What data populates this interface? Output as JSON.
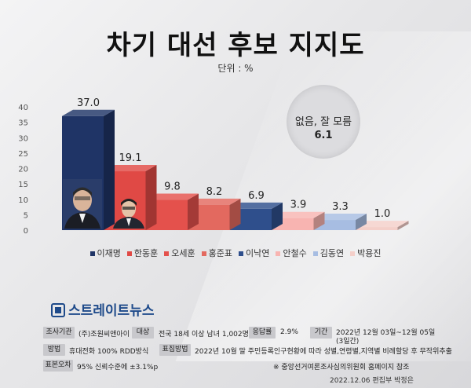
{
  "chart_data": {
    "type": "bar",
    "title": "차기 대선 후보 지지도",
    "unit_label": "단위 : %",
    "categories": [
      "이재명",
      "한동훈",
      "오세훈",
      "홍준표",
      "이낙연",
      "안철수",
      "김동연",
      "박용진"
    ],
    "values": [
      37.0,
      19.1,
      9.8,
      8.2,
      6.9,
      3.9,
      3.3,
      1.0
    ],
    "value_labels": [
      "37.0",
      "19.1",
      "9.8",
      "8.2",
      "6.9",
      "3.9",
      "3.3",
      "1.0"
    ],
    "colors": [
      "#1f3466",
      "#e04945",
      "#e4514c",
      "#e3695f",
      "#2f4f8c",
      "#f8b4b1",
      "#a7bde2",
      "#f4cfc9"
    ],
    "yticks": [
      0,
      5,
      10,
      15,
      20,
      25,
      30,
      35,
      40
    ],
    "ylim": [
      0,
      40
    ],
    "legend_position": "bottom",
    "annotation": {
      "label": "없음, 잘 모름",
      "value": "6.1"
    }
  },
  "logo": {
    "text": "스트레이트뉴스"
  },
  "info": {
    "r1": {
      "t1": "조사기관",
      "v1": "(주)조원씨앤아이",
      "t2": "대상",
      "v2": "전국 18세 이상 남녀 1,002명",
      "t3": "응답률",
      "v3": "2.9%",
      "t4": "기간",
      "v4a": "2022년 12월 03일~12월 05일",
      "v4b": "(3일간)"
    },
    "r2": {
      "t1": "방법",
      "v1": "휴대전화 100% RDD방식",
      "t2": "표집방법",
      "v2": "2022년 10월 말 주민등록인구현황에 따라 성별,연령별,지역별 비례할당 후 무작위추출"
    },
    "r3": {
      "t1": "표본오차",
      "v1": "95% 신뢰수준에 ±3.1%p",
      "note": "※ 중앙선거여론조사심의위원회 홈페이지 참조"
    }
  },
  "footer": "2022.12.06 편집부 박정은",
  "colors": {
    "accent": "#1e4a8a",
    "tag_bg": "#c8c8cc"
  }
}
